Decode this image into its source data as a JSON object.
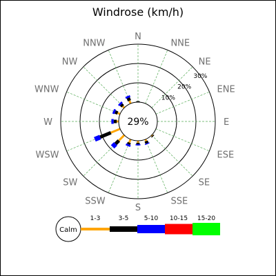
{
  "chart_data": {
    "type": "windrose",
    "title": "Windrose (km/h)",
    "directions": [
      "N",
      "NNE",
      "NE",
      "ENE",
      "E",
      "ESE",
      "SE",
      "SSE",
      "S",
      "SSW",
      "SW",
      "WSW",
      "W",
      "WNW",
      "NW",
      "NNW"
    ],
    "ring_labels": [
      "10%",
      "20%",
      "30%"
    ],
    "ring_values": [
      10,
      20,
      30
    ],
    "calm_label": "29%",
    "calm_percent": 29,
    "speed_bins": [
      {
        "label": "1-3",
        "color": "#FFA500"
      },
      {
        "label": "3-5",
        "color": "#000000"
      },
      {
        "label": "5-10",
        "color": "#0000FF"
      },
      {
        "label": "10-15",
        "color": "#FF0000"
      },
      {
        "label": "15-20",
        "color": "#00FF00"
      }
    ],
    "series": [
      {
        "direction": "N",
        "values": [
          0,
          0.5,
          0,
          0,
          0
        ]
      },
      {
        "direction": "NNE",
        "values": [
          0,
          0,
          0,
          0,
          0
        ]
      },
      {
        "direction": "NE",
        "values": [
          0,
          0,
          0,
          0,
          0
        ]
      },
      {
        "direction": "ENE",
        "values": [
          0,
          0,
          0,
          0,
          0
        ]
      },
      {
        "direction": "E",
        "values": [
          0,
          0,
          0,
          0,
          0
        ]
      },
      {
        "direction": "ESE",
        "values": [
          0,
          0,
          0,
          0,
          0
        ]
      },
      {
        "direction": "SE",
        "values": [
          0.5,
          0.5,
          0,
          0,
          0
        ]
      },
      {
        "direction": "SSE",
        "values": [
          1.0,
          1.2,
          0.5,
          0,
          0
        ]
      },
      {
        "direction": "S",
        "values": [
          1.0,
          0.8,
          0.6,
          0,
          0
        ]
      },
      {
        "direction": "SSW",
        "values": [
          1.8,
          1.0,
          1.0,
          0,
          0
        ]
      },
      {
        "direction": "SW",
        "values": [
          4.0,
          2.4,
          2.2,
          0,
          0
        ]
      },
      {
        "direction": "WSW",
        "values": [
          5.2,
          6.0,
          3.0,
          0,
          0
        ]
      },
      {
        "direction": "W",
        "values": [
          1.0,
          1.6,
          1.2,
          0,
          0
        ]
      },
      {
        "direction": "WNW",
        "values": [
          1.4,
          1.4,
          1.1,
          0,
          0
        ]
      },
      {
        "direction": "NW",
        "values": [
          1.1,
          1.3,
          1.0,
          0,
          0
        ]
      },
      {
        "direction": "NNW",
        "values": [
          1.6,
          1.6,
          1.0,
          0,
          0
        ]
      }
    ],
    "legend_calm_label": "Calm"
  }
}
